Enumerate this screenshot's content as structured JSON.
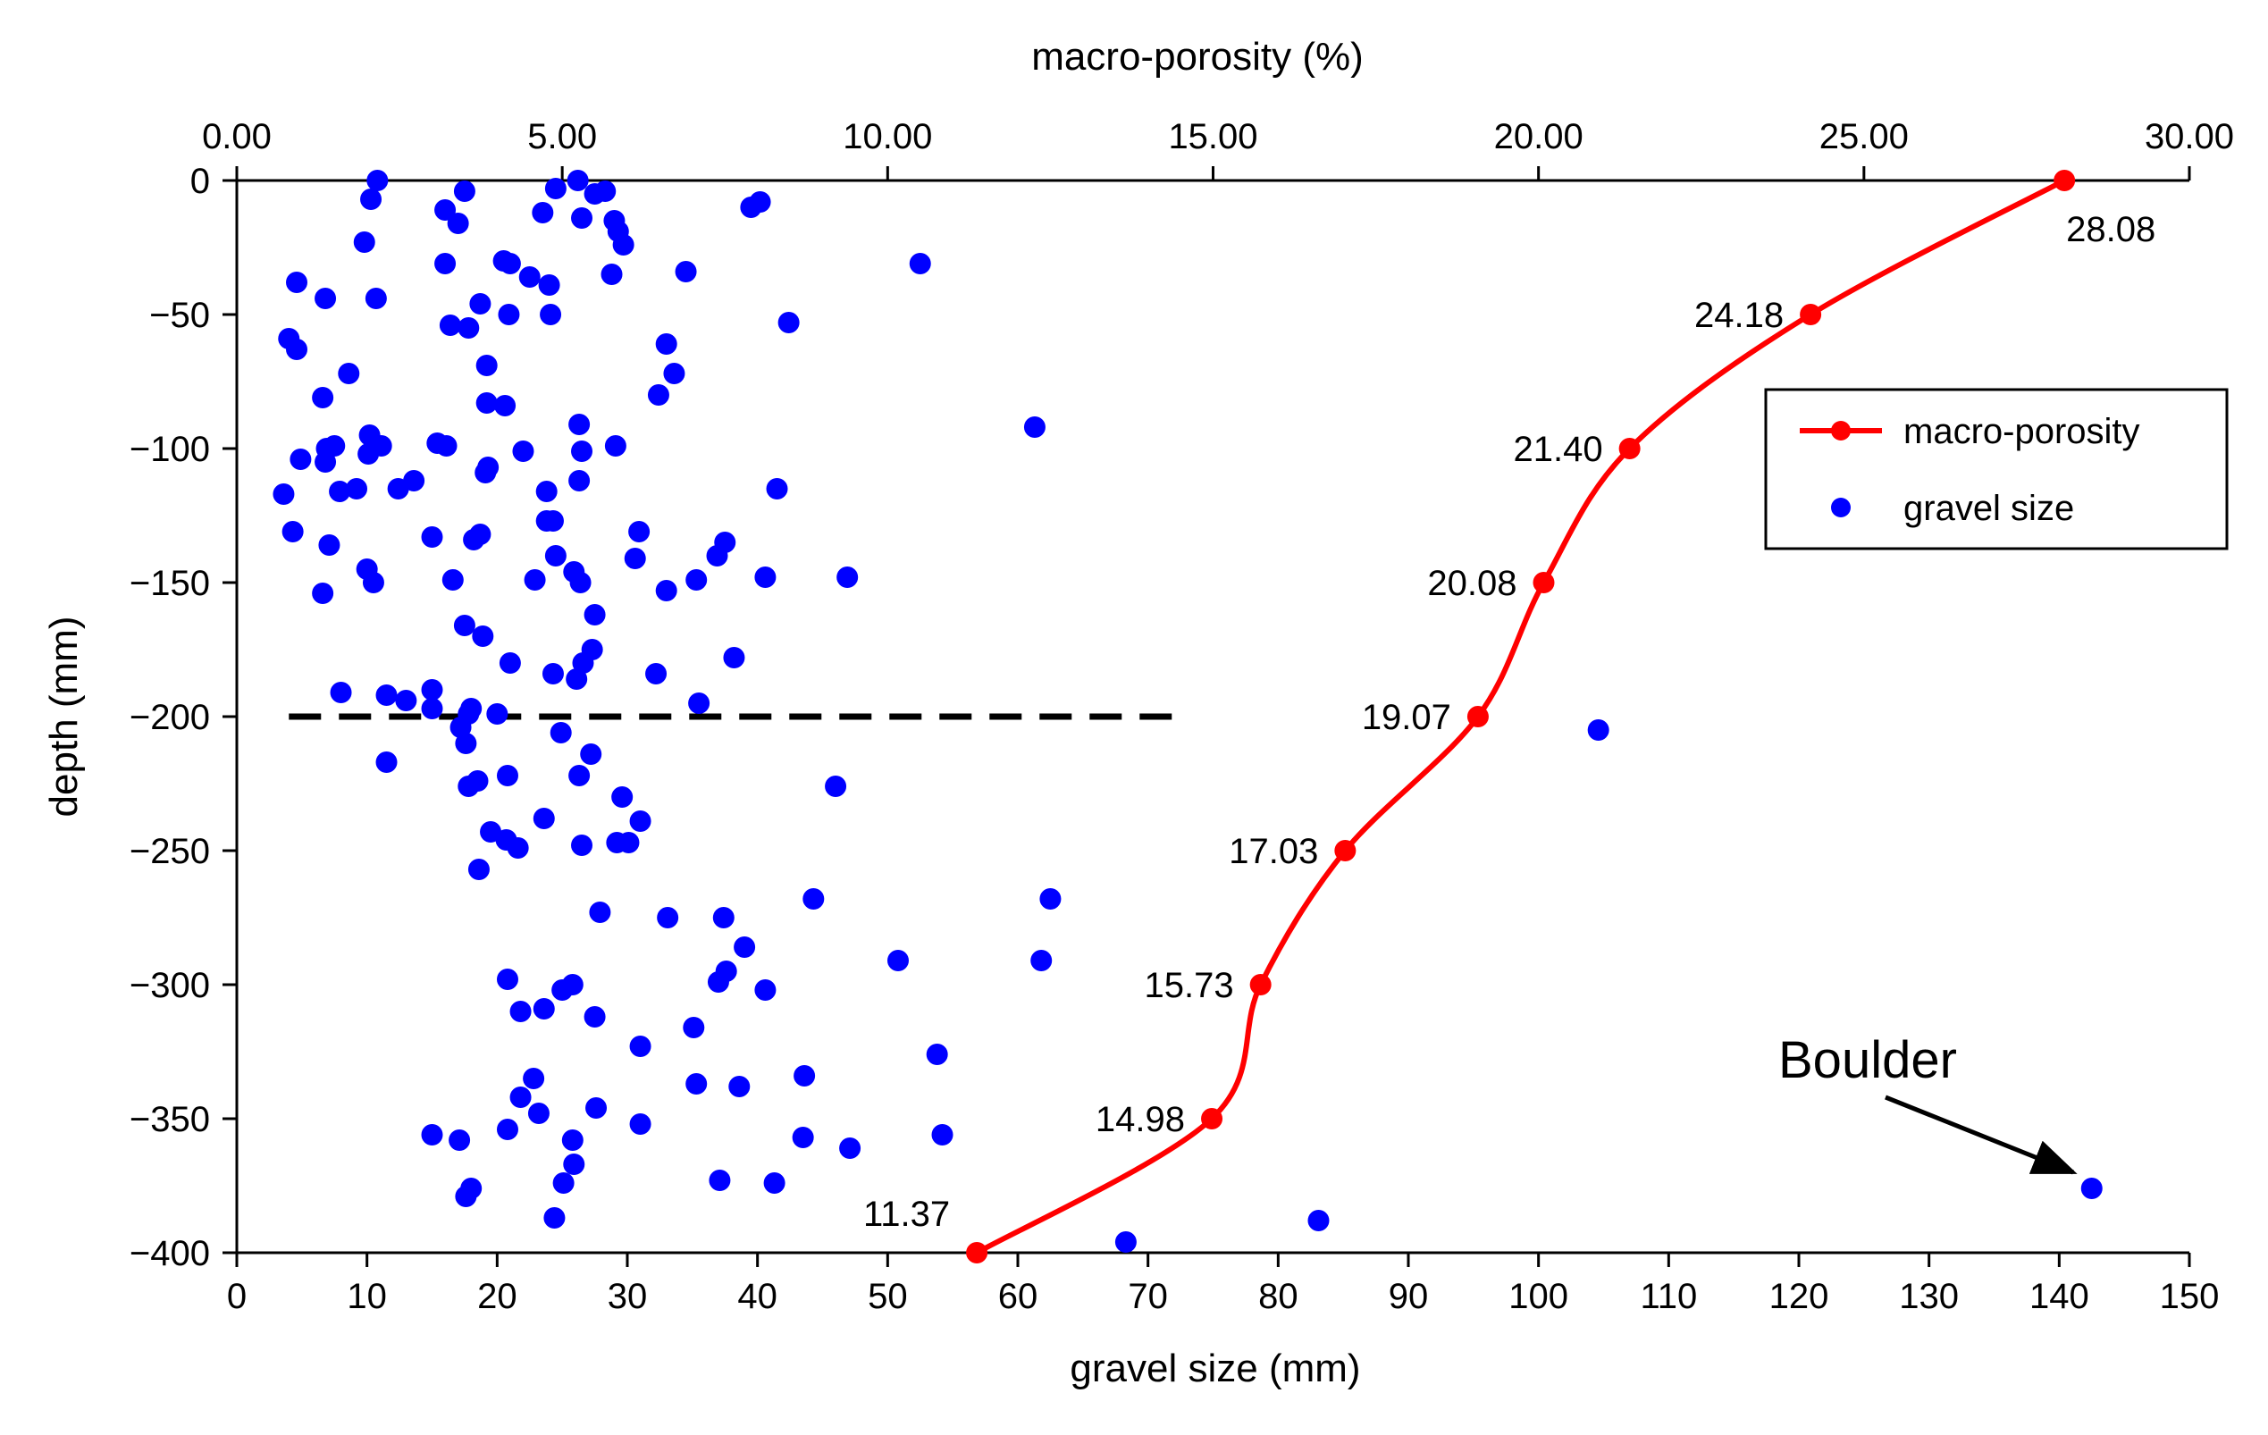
{
  "chart_data": {
    "type": "scatter",
    "title": "",
    "xlabel": "gravel size (mm)",
    "x2label": "macro-porosity (%)",
    "ylabel": "depth (mm)",
    "xlim": [
      0,
      150
    ],
    "x2lim": [
      0,
      30
    ],
    "ylim": [
      -400,
      0
    ],
    "x_ticks": [
      "0",
      "10",
      "20",
      "30",
      "40",
      "50",
      "60",
      "70",
      "80",
      "90",
      "100",
      "110",
      "120",
      "130",
      "140",
      "150"
    ],
    "x2_ticks": [
      "0.00",
      "5.00",
      "10.00",
      "15.00",
      "20.00",
      "25.00",
      "30.00"
    ],
    "y_ticks": [
      "0",
      "−50",
      "−100",
      "−150",
      "−200",
      "−250",
      "−300",
      "−350",
      "−400"
    ],
    "grid": false,
    "legend_position": "right",
    "reference_line": {
      "depth": -200,
      "x_from": 4,
      "x_to": 72,
      "style": "dashed"
    },
    "annotation": {
      "text": "Boulder",
      "points_to": [
        142.5,
        -376
      ]
    },
    "series": [
      {
        "name": "macro-porosity",
        "kind": "line",
        "color": "#ff0000",
        "axis": "top",
        "points": [
          {
            "porosity": 28.08,
            "depth": 0,
            "label": "28.08"
          },
          {
            "porosity": 24.18,
            "depth": -50,
            "label": "24.18"
          },
          {
            "porosity": 21.4,
            "depth": -100,
            "label": "21.40"
          },
          {
            "porosity": 20.08,
            "depth": -150,
            "label": "20.08"
          },
          {
            "porosity": 19.07,
            "depth": -200,
            "label": "19.07"
          },
          {
            "porosity": 17.03,
            "depth": -250,
            "label": "17.03"
          },
          {
            "porosity": 15.73,
            "depth": -300,
            "label": "15.73"
          },
          {
            "porosity": 14.98,
            "depth": -350,
            "label": "14.98"
          },
          {
            "porosity": 11.37,
            "depth": -400,
            "label": "11.37"
          }
        ]
      },
      {
        "name": "gravel size",
        "kind": "scatter",
        "color": "#0000ff",
        "axis": "bottom",
        "points": [
          [
            10.8,
            0
          ],
          [
            10.3,
            -7
          ],
          [
            17.5,
            -4
          ],
          [
            26.2,
            0
          ],
          [
            27.5,
            -5
          ],
          [
            28.3,
            -4
          ],
          [
            29,
            -15
          ],
          [
            29.3,
            -19
          ],
          [
            29.7,
            -24
          ],
          [
            24.5,
            -3
          ],
          [
            23.5,
            -12
          ],
          [
            26.5,
            -14
          ],
          [
            16,
            -11
          ],
          [
            17,
            -16
          ],
          [
            9.8,
            -23
          ],
          [
            16,
            -31
          ],
          [
            20.5,
            -30
          ],
          [
            21,
            -31
          ],
          [
            22.5,
            -36
          ],
          [
            24,
            -39
          ],
          [
            28.8,
            -35
          ],
          [
            34.5,
            -34
          ],
          [
            52.5,
            -31
          ],
          [
            39.5,
            -10
          ],
          [
            40.2,
            -8
          ],
          [
            4.6,
            -38
          ],
          [
            6.8,
            -44
          ],
          [
            10.7,
            -44
          ],
          [
            18.7,
            -46
          ],
          [
            20.9,
            -50
          ],
          [
            24.1,
            -50
          ],
          [
            42.4,
            -53
          ],
          [
            16.4,
            -54
          ],
          [
            17.8,
            -55
          ],
          [
            4,
            -59
          ],
          [
            4.6,
            -63
          ],
          [
            33,
            -61
          ],
          [
            33.6,
            -72
          ],
          [
            8.6,
            -72
          ],
          [
            19.2,
            -69
          ],
          [
            6.6,
            -81
          ],
          [
            19.2,
            -83
          ],
          [
            20.6,
            -84
          ],
          [
            32.4,
            -80
          ],
          [
            26.3,
            -91
          ],
          [
            61.3,
            -92
          ],
          [
            10.2,
            -95
          ],
          [
            15.4,
            -98
          ],
          [
            16.1,
            -99
          ],
          [
            29.1,
            -99
          ],
          [
            6.9,
            -100
          ],
          [
            10.1,
            -102
          ],
          [
            11.1,
            -99
          ],
          [
            6.8,
            -105
          ],
          [
            4.9,
            -104
          ],
          [
            7.5,
            -99
          ],
          [
            19.3,
            -107
          ],
          [
            19.1,
            -109
          ],
          [
            22,
            -101
          ],
          [
            26.5,
            -101
          ],
          [
            26.3,
            -112
          ],
          [
            13.6,
            -112
          ],
          [
            12.4,
            -115
          ],
          [
            9.2,
            -115
          ],
          [
            7.9,
            -116
          ],
          [
            3.6,
            -117
          ],
          [
            41.5,
            -115
          ],
          [
            23.8,
            -116
          ],
          [
            23.8,
            -127
          ],
          [
            24.3,
            -127
          ],
          [
            4.3,
            -131
          ],
          [
            7.1,
            -136
          ],
          [
            15,
            -133
          ],
          [
            18.2,
            -134
          ],
          [
            18.7,
            -132
          ],
          [
            24.5,
            -140
          ],
          [
            30.9,
            -131
          ],
          [
            30.6,
            -141
          ],
          [
            36.9,
            -140
          ],
          [
            37.5,
            -135
          ],
          [
            10,
            -145
          ],
          [
            10.5,
            -150
          ],
          [
            6.6,
            -154
          ],
          [
            16.6,
            -149
          ],
          [
            22.9,
            -149
          ],
          [
            25.9,
            -146
          ],
          [
            26.4,
            -150
          ],
          [
            40.6,
            -148
          ],
          [
            35.3,
            -149
          ],
          [
            33,
            -153
          ],
          [
            46.9,
            -148
          ],
          [
            17.5,
            -166
          ],
          [
            18.9,
            -170
          ],
          [
            27.5,
            -162
          ],
          [
            27.3,
            -175
          ],
          [
            26.6,
            -180
          ],
          [
            26.1,
            -186
          ],
          [
            21,
            -180
          ],
          [
            24.3,
            -184
          ],
          [
            32.2,
            -184
          ],
          [
            38.2,
            -178
          ],
          [
            8,
            -191
          ],
          [
            11.5,
            -192
          ],
          [
            13,
            -194
          ],
          [
            15,
            -190
          ],
          [
            15,
            -197
          ],
          [
            18,
            -197
          ],
          [
            17.8,
            -199
          ],
          [
            20,
            -199
          ],
          [
            17.2,
            -204
          ],
          [
            17.6,
            -210
          ],
          [
            24.9,
            -206
          ],
          [
            35.5,
            -195
          ],
          [
            104.6,
            -205
          ],
          [
            11.5,
            -217
          ],
          [
            27.2,
            -214
          ],
          [
            17.8,
            -226
          ],
          [
            18.5,
            -224
          ],
          [
            20.8,
            -222
          ],
          [
            26.3,
            -222
          ],
          [
            29.6,
            -230
          ],
          [
            46,
            -226
          ],
          [
            31,
            -239
          ],
          [
            23.6,
            -238
          ],
          [
            19.5,
            -243
          ],
          [
            20.7,
            -246
          ],
          [
            21.6,
            -249
          ],
          [
            26.5,
            -248
          ],
          [
            29.2,
            -247
          ],
          [
            30.1,
            -247
          ],
          [
            18.6,
            -257
          ],
          [
            27.9,
            -273
          ],
          [
            33.1,
            -275
          ],
          [
            37.4,
            -275
          ],
          [
            44.3,
            -268
          ],
          [
            62.5,
            -268
          ],
          [
            39,
            -286
          ],
          [
            37.6,
            -295
          ],
          [
            37,
            -299
          ],
          [
            40.6,
            -302
          ],
          [
            50.8,
            -291
          ],
          [
            61.8,
            -291
          ],
          [
            20.8,
            -298
          ],
          [
            25,
            -302
          ],
          [
            25.8,
            -300
          ],
          [
            21.8,
            -310
          ],
          [
            23.6,
            -309
          ],
          [
            27.5,
            -312
          ],
          [
            31,
            -323
          ],
          [
            35.1,
            -316
          ],
          [
            53.8,
            -326
          ],
          [
            22.8,
            -335
          ],
          [
            21.8,
            -342
          ],
          [
            23.2,
            -348
          ],
          [
            27.6,
            -346
          ],
          [
            35.3,
            -337
          ],
          [
            38.6,
            -338
          ],
          [
            43.6,
            -334
          ],
          [
            15,
            -356
          ],
          [
            17.1,
            -358
          ],
          [
            20.8,
            -354
          ],
          [
            25.8,
            -358
          ],
          [
            31,
            -352
          ],
          [
            43.5,
            -357
          ],
          [
            47.1,
            -361
          ],
          [
            54.2,
            -356
          ],
          [
            25.9,
            -367
          ],
          [
            25.1,
            -374
          ],
          [
            17.6,
            -379
          ],
          [
            18,
            -376
          ],
          [
            24.4,
            -387
          ],
          [
            37.1,
            -373
          ],
          [
            41.3,
            -374
          ],
          [
            68.3,
            -396
          ],
          [
            83.1,
            -388
          ],
          [
            142.5,
            -376
          ]
        ]
      }
    ]
  },
  "legend": {
    "items": [
      {
        "label": "macro-porosity"
      },
      {
        "label": "gravel size"
      }
    ]
  }
}
